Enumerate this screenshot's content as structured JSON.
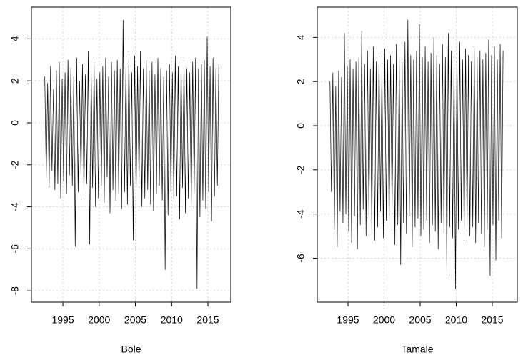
{
  "chart_data": [
    {
      "type": "line",
      "xlabel": "Bole",
      "color": "#000000",
      "grid": true,
      "xlim": [
        1990.66,
        2018.15
      ],
      "ylim": [
        -8.54,
        5.51
      ],
      "xticks": [
        1995,
        2000,
        2005,
        2010,
        2015
      ],
      "yticks": [
        -8,
        -6,
        -4,
        -2,
        0,
        2,
        4
      ],
      "x": [
        1992.5,
        1992.7,
        1992.9,
        1993.1,
        1993.3,
        1993.5,
        1993.7,
        1993.9,
        1994.1,
        1994.3,
        1994.5,
        1994.7,
        1994.9,
        1995.1,
        1995.3,
        1995.5,
        1995.7,
        1995.9,
        1996.1,
        1996.3,
        1996.5,
        1996.7,
        1996.9,
        1997.1,
        1997.3,
        1997.5,
        1997.7,
        1997.9,
        1998.1,
        1998.3,
        1998.5,
        1998.7,
        1998.9,
        1999.1,
        1999.3,
        1999.5,
        1999.7,
        1999.9,
        2000.1,
        2000.3,
        2000.5,
        2000.7,
        2000.9,
        2001.1,
        2001.3,
        2001.5,
        2001.7,
        2001.9,
        2002.1,
        2002.3,
        2002.5,
        2002.7,
        2002.9,
        2003.1,
        2003.3,
        2003.5,
        2003.7,
        2003.9,
        2004.1,
        2004.3,
        2004.5,
        2004.7,
        2004.9,
        2005.1,
        2005.3,
        2005.5,
        2005.7,
        2005.9,
        2006.1,
        2006.3,
        2006.5,
        2006.7,
        2006.9,
        2007.1,
        2007.3,
        2007.5,
        2007.7,
        2007.9,
        2008.1,
        2008.3,
        2008.5,
        2008.7,
        2008.9,
        2009.1,
        2009.3,
        2009.5,
        2009.7,
        2009.9,
        2010.1,
        2010.3,
        2010.5,
        2010.7,
        2010.9,
        2011.1,
        2011.3,
        2011.5,
        2011.7,
        2011.9,
        2012.1,
        2012.3,
        2012.5,
        2012.7,
        2012.9,
        2013.1,
        2013.3,
        2013.5,
        2013.7,
        2013.9,
        2014.1,
        2014.3,
        2014.5,
        2014.7,
        2014.9,
        2015.1,
        2015.3,
        2015.5,
        2015.7,
        2015.9,
        2016.1,
        2016.3,
        2016.5
      ],
      "values": [
        2.2,
        -2.6,
        1.9,
        -3.1,
        2.7,
        -2.3,
        1.6,
        -3.2,
        2.5,
        -2.9,
        2.9,
        -3.6,
        2.1,
        -2.8,
        2.4,
        -3.4,
        3.0,
        -2.5,
        2.6,
        -3.0,
        2.2,
        -5.9,
        3.1,
        -3.3,
        2.0,
        -2.7,
        2.8,
        -3.5,
        2.3,
        -2.9,
        3.4,
        -5.8,
        2.5,
        -3.1,
        2.9,
        -4.0,
        2.1,
        -3.6,
        2.4,
        -3.0,
        2.7,
        -3.8,
        3.1,
        -2.6,
        2.2,
        -4.3,
        2.9,
        -3.2,
        2.5,
        -3.7,
        3.0,
        -3.4,
        2.6,
        -4.1,
        4.9,
        -3.3,
        2.8,
        -3.9,
        3.3,
        -3.0,
        2.4,
        -5.6,
        3.2,
        -3.5,
        2.7,
        -3.1,
        3.4,
        -4.0,
        2.6,
        -3.6,
        3.0,
        -3.2,
        2.5,
        -3.9,
        2.9,
        -4.2,
        2.3,
        -3.4,
        3.1,
        -3.0,
        2.6,
        -3.7,
        2.2,
        -7.0,
        2.5,
        -4.4,
        2.8,
        -3.3,
        2.4,
        -3.8,
        3.2,
        -3.5,
        2.7,
        -4.6,
        2.9,
        -3.1,
        3.0,
        -4.3,
        2.6,
        -3.6,
        2.4,
        -4.0,
        2.9,
        -3.4,
        3.1,
        -7.9,
        2.6,
        -4.5,
        2.8,
        -3.7,
        3.0,
        -4.1,
        4.1,
        -3.3,
        2.7,
        -4.7,
        3.1,
        -3.5,
        2.6,
        -3.0,
        2.8
      ]
    },
    {
      "type": "line",
      "xlabel": "Tamale",
      "color": "#000000",
      "grid": true,
      "xlim": [
        1990.74,
        2018.47
      ],
      "ylim": [
        -7.99,
        5.37
      ],
      "xticks": [
        1995,
        2000,
        2005,
        2010,
        2015
      ],
      "yticks": [
        -6,
        -4,
        -2,
        0,
        2,
        4
      ],
      "x": [
        1992.5,
        1992.7,
        1992.9,
        1993.1,
        1993.3,
        1993.5,
        1993.7,
        1993.9,
        1994.1,
        1994.3,
        1994.5,
        1994.7,
        1994.9,
        1995.1,
        1995.3,
        1995.5,
        1995.7,
        1995.9,
        1996.1,
        1996.3,
        1996.5,
        1996.7,
        1996.9,
        1997.1,
        1997.3,
        1997.5,
        1997.7,
        1997.9,
        1998.1,
        1998.3,
        1998.5,
        1998.7,
        1998.9,
        1999.1,
        1999.3,
        1999.5,
        1999.7,
        1999.9,
        2000.1,
        2000.3,
        2000.5,
        2000.7,
        2000.9,
        2001.1,
        2001.3,
        2001.5,
        2001.7,
        2001.9,
        2002.1,
        2002.3,
        2002.5,
        2002.7,
        2002.9,
        2003.1,
        2003.3,
        2003.5,
        2003.7,
        2003.9,
        2004.1,
        2004.3,
        2004.5,
        2004.7,
        2004.9,
        2005.1,
        2005.3,
        2005.5,
        2005.7,
        2005.9,
        2006.1,
        2006.3,
        2006.5,
        2006.7,
        2006.9,
        2007.1,
        2007.3,
        2007.5,
        2007.7,
        2007.9,
        2008.1,
        2008.3,
        2008.5,
        2008.7,
        2008.9,
        2009.1,
        2009.3,
        2009.5,
        2009.7,
        2009.9,
        2010.1,
        2010.3,
        2010.5,
        2010.7,
        2010.9,
        2011.1,
        2011.3,
        2011.5,
        2011.7,
        2011.9,
        2012.1,
        2012.3,
        2012.5,
        2012.7,
        2012.9,
        2013.1,
        2013.3,
        2013.5,
        2013.7,
        2013.9,
        2014.1,
        2014.3,
        2014.5,
        2014.7,
        2014.9,
        2015.1,
        2015.3,
        2015.5,
        2015.7,
        2015.9,
        2016.1,
        2016.3,
        2016.5
      ],
      "values": [
        2.0,
        -3.0,
        2.4,
        -4.7,
        1.8,
        -5.5,
        2.5,
        -3.9,
        2.2,
        -4.4,
        4.2,
        -4.0,
        2.7,
        -4.8,
        3.0,
        -5.3,
        2.6,
        -4.1,
        2.9,
        -5.6,
        3.1,
        -4.5,
        4.3,
        -3.8,
        2.8,
        -5.0,
        3.4,
        -4.2,
        2.6,
        -4.9,
        3.6,
        -5.2,
        2.9,
        -4.6,
        3.3,
        -3.9,
        2.7,
        -5.1,
        3.5,
        -4.3,
        3.0,
        -4.7,
        3.2,
        -4.0,
        2.8,
        -5.4,
        3.7,
        -4.5,
        3.1,
        -6.3,
        2.9,
        -4.4,
        3.8,
        -4.9,
        4.8,
        -4.1,
        3.2,
        -5.5,
        3.0,
        -4.6,
        3.4,
        -4.2,
        4.6,
        -5.0,
        3.1,
        -4.7,
        3.6,
        -4.3,
        2.9,
        -5.3,
        3.3,
        -4.5,
        4.0,
        -4.8,
        3.2,
        -5.6,
        2.8,
        -4.4,
        3.7,
        -4.9,
        3.1,
        -6.8,
        4.2,
        -4.6,
        3.4,
        -5.1,
        3.0,
        -7.4,
        3.3,
        -4.7,
        3.8,
        -4.3,
        3.0,
        -5.2,
        3.5,
        -4.8,
        3.2,
        -5.0,
        2.9,
        -4.6,
        3.6,
        -5.3,
        3.1,
        -4.4,
        3.4,
        -4.9,
        3.0,
        -5.5,
        3.3,
        -4.7,
        3.9,
        -6.8,
        3.2,
        -4.5,
        3.6,
        -6.1,
        3.0,
        -4.3,
        3.7,
        -5.1,
        3.4
      ]
    }
  ]
}
